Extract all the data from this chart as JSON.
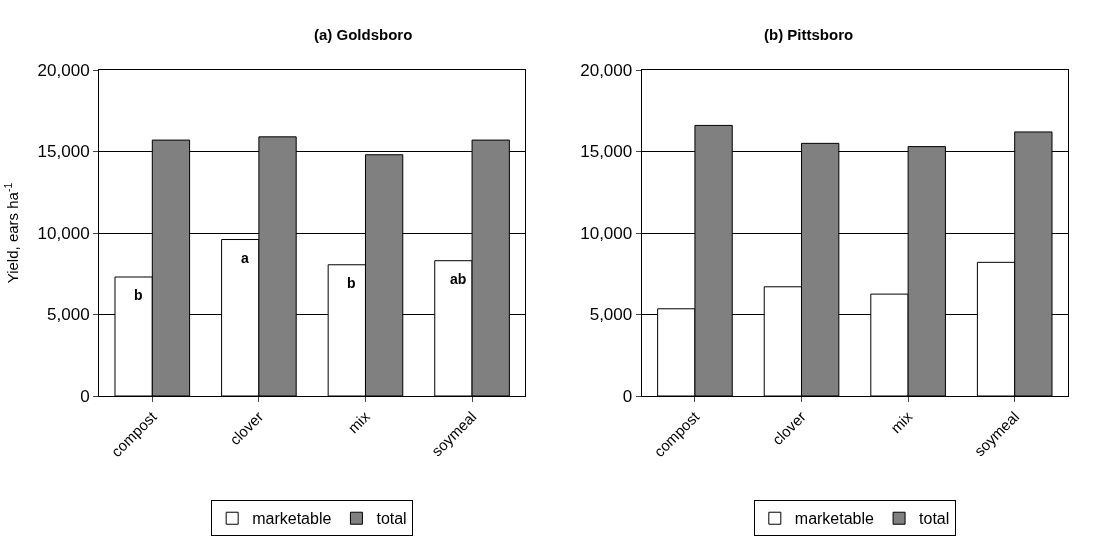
{
  "chart_data": [
    {
      "type": "bar",
      "title": "(a) Goldsboro",
      "ylabel": "Yield, ears ha$^{-1}$",
      "categories": [
        "compost",
        "clover",
        "mix",
        "soymeal"
      ],
      "series": [
        {
          "name": "marketable",
          "color": "#ffffff",
          "values": [
            7300,
            9600,
            8050,
            8300
          ]
        },
        {
          "name": "total",
          "color": "#808080",
          "values": [
            15700,
            15900,
            14800,
            15700
          ]
        }
      ],
      "annotations": [
        {
          "text": "b",
          "x": "compost",
          "y": 7300
        },
        {
          "text": "a",
          "x": "clover",
          "y": 9600
        },
        {
          "text": "b",
          "x": "mix",
          "y": 8050
        },
        {
          "text": "ab",
          "x": "soymeal",
          "y": 8300
        }
      ],
      "ylim": [
        0,
        20000
      ],
      "yticks": [
        {
          "value": 0,
          "label": "0"
        },
        {
          "value": 5000,
          "label": "5,000"
        },
        {
          "value": 10000,
          "label": "10,000"
        },
        {
          "value": 15000,
          "label": "15,000"
        },
        {
          "value": 20000,
          "label": "20,000"
        }
      ],
      "grid": "y",
      "legend": "bottom"
    },
    {
      "type": "bar",
      "title": "(b) Pittsboro",
      "categories": [
        "compost",
        "clover",
        "mix",
        "soymeal"
      ],
      "series": [
        {
          "name": "marketable",
          "color": "#ffffff",
          "values": [
            5350,
            6700,
            6250,
            8200
          ]
        },
        {
          "name": "total",
          "color": "#808080",
          "values": [
            16600,
            15500,
            15300,
            16200
          ]
        }
      ],
      "ylim": [
        0,
        20000
      ],
      "yticks": [
        {
          "value": 0,
          "label": "0"
        },
        {
          "value": 5000,
          "label": "5,000"
        },
        {
          "value": 10000,
          "label": "10,000"
        },
        {
          "value": 15000,
          "label": "15,000"
        },
        {
          "value": 20000,
          "label": "20,000"
        }
      ],
      "grid": "y",
      "legend": "bottom"
    }
  ]
}
